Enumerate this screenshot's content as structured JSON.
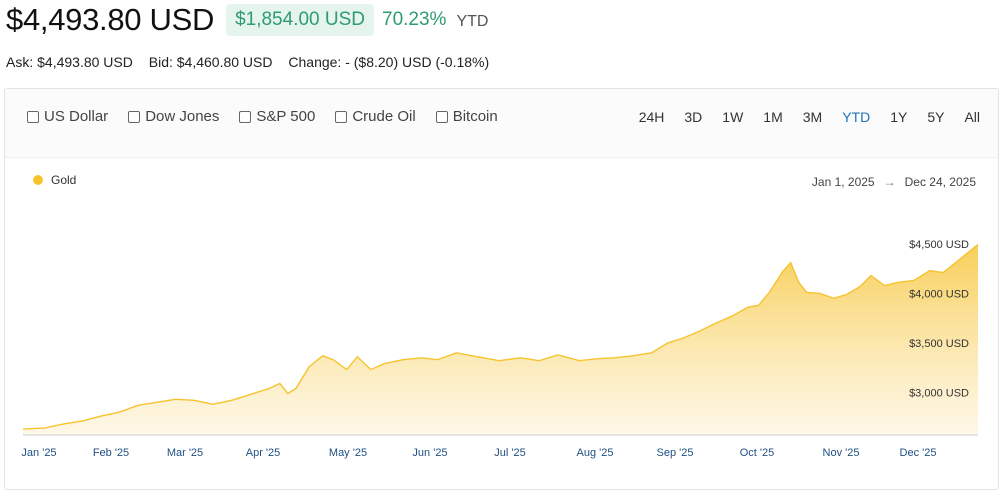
{
  "header": {
    "price": "$4,493.80 USD",
    "change_amount": "$1,854.00 USD",
    "change_percent": "70.23%",
    "period": "YTD"
  },
  "quote": {
    "ask": "Ask: $4,493.80 USD",
    "bid": "Bid: $4,460.80 USD",
    "change": "Change: - ($8.20) USD (-0.18%)"
  },
  "compare": [
    {
      "label": "US Dollar",
      "checked": false
    },
    {
      "label": "Dow Jones",
      "checked": false
    },
    {
      "label": "S&P 500",
      "checked": false
    },
    {
      "label": "Crude Oil",
      "checked": false
    },
    {
      "label": "Bitcoin",
      "checked": false
    }
  ],
  "ranges": [
    "24H",
    "3D",
    "1W",
    "1M",
    "3M",
    "YTD",
    "1Y",
    "5Y",
    "All"
  ],
  "active_range": "YTD",
  "legend": {
    "label": "Gold",
    "color": "#f6c32f"
  },
  "date_range": {
    "from": "Jan 1, 2025",
    "arrow": "→",
    "to": "Dec 24, 2025"
  },
  "colors": {
    "accent": "#2e9c70",
    "active_range": "#1f73b7",
    "series": "#f6c32f"
  },
  "chart_data": {
    "type": "area",
    "series": [
      {
        "name": "Gold"
      }
    ],
    "x_tick_labels": [
      "Jan '25",
      "Feb '25",
      "Mar '25",
      "Apr '25",
      "May '25",
      "Jun '25",
      "Jul '25",
      "Aug '25",
      "Sep '25",
      "Oct '25",
      "Nov '25",
      "Dec '25"
    ],
    "y_tick_labels": [
      "$3,000 USD",
      "$3,500 USD",
      "$4,000 USD",
      "$4,500 USD"
    ],
    "y_ticks": [
      3000,
      3500,
      4000,
      4500
    ],
    "ylim": [
      2570,
      4650
    ],
    "xlim": [
      0,
      357
    ],
    "grid": false,
    "legend_position": "top-left",
    "points": [
      [
        0,
        2630
      ],
      [
        8,
        2640
      ],
      [
        15,
        2680
      ],
      [
        22,
        2710
      ],
      [
        29,
        2760
      ],
      [
        36,
        2800
      ],
      [
        43,
        2870
      ],
      [
        50,
        2900
      ],
      [
        57,
        2930
      ],
      [
        64,
        2920
      ],
      [
        71,
        2880
      ],
      [
        78,
        2920
      ],
      [
        85,
        2980
      ],
      [
        92,
        3040
      ],
      [
        96,
        3090
      ],
      [
        99,
        2990
      ],
      [
        102,
        3040
      ],
      [
        107,
        3260
      ],
      [
        112,
        3370
      ],
      [
        116,
        3330
      ],
      [
        121,
        3230
      ],
      [
        125,
        3360
      ],
      [
        130,
        3230
      ],
      [
        135,
        3290
      ],
      [
        142,
        3330
      ],
      [
        149,
        3350
      ],
      [
        155,
        3330
      ],
      [
        162,
        3400
      ],
      [
        170,
        3360
      ],
      [
        178,
        3320
      ],
      [
        186,
        3350
      ],
      [
        193,
        3320
      ],
      [
        200,
        3380
      ],
      [
        208,
        3320
      ],
      [
        215,
        3340
      ],
      [
        221,
        3350
      ],
      [
        228,
        3370
      ],
      [
        235,
        3400
      ],
      [
        241,
        3500
      ],
      [
        247,
        3550
      ],
      [
        253,
        3620
      ],
      [
        259,
        3700
      ],
      [
        265,
        3770
      ],
      [
        271,
        3860
      ],
      [
        275,
        3880
      ],
      [
        279,
        4010
      ],
      [
        284,
        4220
      ],
      [
        287,
        4310
      ],
      [
        290,
        4110
      ],
      [
        293,
        4010
      ],
      [
        298,
        4000
      ],
      [
        303,
        3950
      ],
      [
        308,
        3990
      ],
      [
        313,
        4070
      ],
      [
        317,
        4180
      ],
      [
        322,
        4080
      ],
      [
        327,
        4110
      ],
      [
        333,
        4130
      ],
      [
        339,
        4230
      ],
      [
        344,
        4210
      ],
      [
        350,
        4340
      ],
      [
        355,
        4450
      ],
      [
        357,
        4493.8
      ]
    ]
  }
}
